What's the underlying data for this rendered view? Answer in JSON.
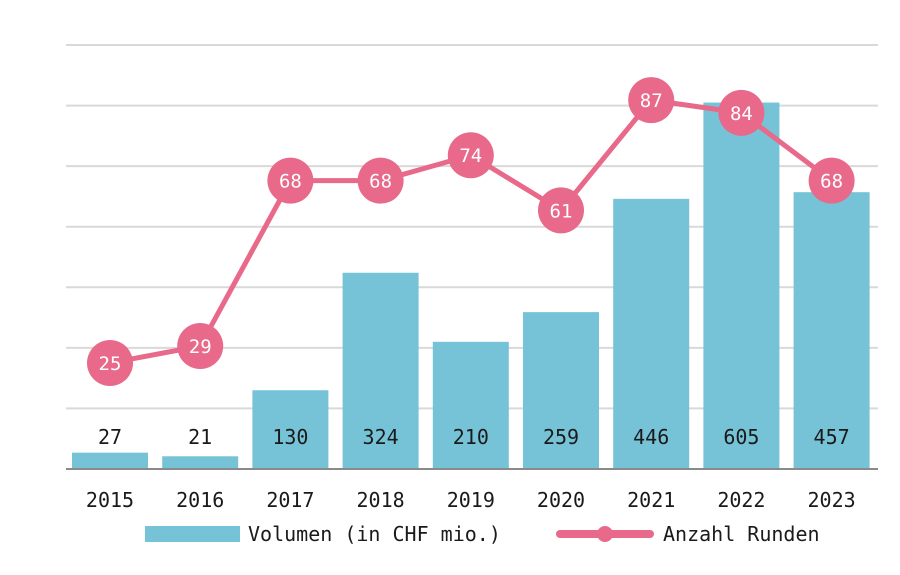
{
  "chart_data": {
    "type": "bar+line",
    "categories": [
      "2015",
      "2016",
      "2017",
      "2018",
      "2019",
      "2020",
      "2021",
      "2022",
      "2023"
    ],
    "series": [
      {
        "name": "Volumen (in CHF mio.)",
        "type": "bar",
        "values": [
          27,
          21,
          130,
          324,
          210,
          259,
          446,
          605,
          457
        ],
        "color": "#76c3d7"
      },
      {
        "name": "Anzahl Runden",
        "type": "line",
        "values": [
          25,
          29,
          68,
          68,
          74,
          61,
          87,
          84,
          68
        ],
        "color": "#e8698a"
      }
    ],
    "ylim_bar": [
      0,
      700
    ],
    "ylim_line": [
      0,
      100
    ],
    "grid": true,
    "legend": "bottom"
  }
}
